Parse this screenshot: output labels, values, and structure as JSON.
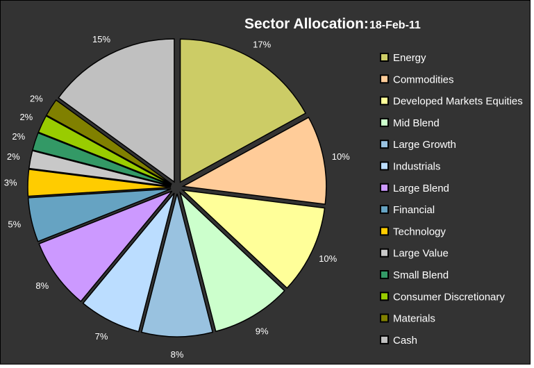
{
  "chart_data": {
    "type": "pie",
    "title": "Sector Allocation:",
    "subtitle": "18-Feb-11",
    "start_angle_deg": 0,
    "direction": "clockwise",
    "exploded": true,
    "legend_position": "right",
    "slices": [
      {
        "label": "Energy",
        "value": 17,
        "display": "17%",
        "color": "#CCCC66"
      },
      {
        "label": "Commodities",
        "value": 10,
        "display": "10%",
        "color": "#FFCC99"
      },
      {
        "label": "Developed Markets Equities",
        "value": 10,
        "display": "10%",
        "color": "#FFFF99"
      },
      {
        "label": "Mid Blend",
        "value": 9,
        "display": "9%",
        "color": "#CCFFCC"
      },
      {
        "label": "Large Growth",
        "value": 8,
        "display": "8%",
        "color": "#99C2E0"
      },
      {
        "label": "Industrials",
        "value": 7,
        "display": "7%",
        "color": "#BBDDFF"
      },
      {
        "label": "Large Blend",
        "value": 8,
        "display": "8%",
        "color": "#CC99FF"
      },
      {
        "label": "Financial",
        "value": 5,
        "display": "5%",
        "color": "#66A3C2"
      },
      {
        "label": "Technology",
        "value": 3,
        "display": "3%",
        "color": "#FFCC00"
      },
      {
        "label": "Large Value",
        "value": 2,
        "display": "2%",
        "color": "#C8C8C8"
      },
      {
        "label": "Small Blend",
        "value": 2,
        "display": "2%",
        "color": "#339966"
      },
      {
        "label": "Consumer Discretionary",
        "value": 2,
        "display": "2%",
        "color": "#99CC00"
      },
      {
        "label": "Materials",
        "value": 2,
        "display": "2%",
        "color": "#808000"
      },
      {
        "label": "Cash",
        "value": 15,
        "display": "15%",
        "color": "#C0C0C0"
      }
    ]
  }
}
